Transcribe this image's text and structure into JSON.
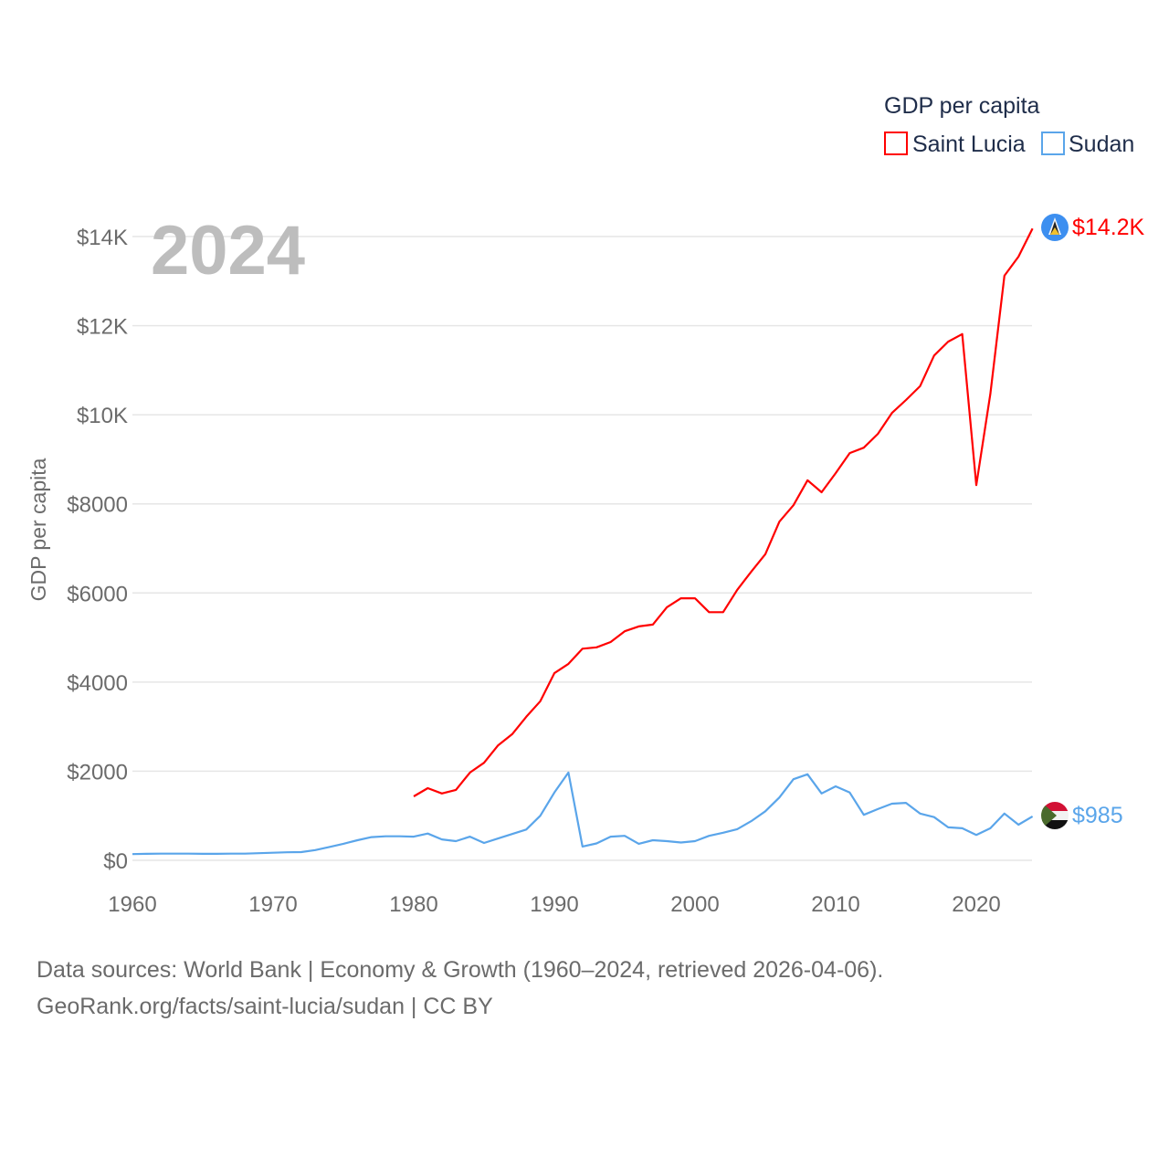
{
  "chart_data": {
    "type": "line",
    "title": "2024",
    "xlabel": "",
    "ylabel": "GDP per capita",
    "xlim": [
      1960,
      2024
    ],
    "ylim": [
      0,
      14500
    ],
    "grid": true,
    "x_ticks": [
      1960,
      1970,
      1980,
      1990,
      2000,
      2010,
      2020
    ],
    "x_tick_labels": [
      "1960",
      "1970",
      "1980",
      "1990",
      "2000",
      "2010",
      "2020"
    ],
    "y_ticks": [
      0,
      2000,
      4000,
      6000,
      8000,
      10000,
      12000,
      14000
    ],
    "y_tick_labels": [
      "$0",
      "$2000",
      "$4000",
      "$6000",
      "$8000",
      "$10K",
      "$12K",
      "$14K"
    ],
    "legend": {
      "title": "GDP per capita",
      "placement": "top-right"
    },
    "series": [
      {
        "name": "Saint Lucia",
        "color": "#ff0000",
        "end_label": "$14.2K",
        "x_start": 1980,
        "values": [
          1435,
          1620,
          1500,
          1580,
          1970,
          2190,
          2580,
          2830,
          3220,
          3570,
          4200,
          4410,
          4750,
          4780,
          4900,
          5140,
          5250,
          5290,
          5680,
          5880,
          5880,
          5570,
          5570,
          6070,
          6480,
          6870,
          7600,
          7970,
          8530,
          8260,
          8690,
          9140,
          9260,
          9570,
          10040,
          10330,
          10640,
          11330,
          11640,
          11810,
          8420,
          10470,
          13120,
          13550,
          14180
        ]
      },
      {
        "name": "Sudan",
        "color": "#5aa5ea",
        "end_label": "$985",
        "x_start": 1960,
        "values": [
          140,
          145,
          150,
          150,
          150,
          145,
          145,
          150,
          150,
          160,
          170,
          180,
          185,
          230,
          300,
          370,
          450,
          520,
          540,
          540,
          530,
          600,
          470,
          430,
          530,
          390,
          490,
          590,
          690,
          1000,
          1520,
          1970,
          310,
          380,
          530,
          550,
          370,
          450,
          430,
          400,
          430,
          550,
          620,
          700,
          880,
          1100,
          1410,
          1820,
          1930,
          1500,
          1660,
          1520,
          1020,
          1150,
          1270,
          1290,
          1050,
          970,
          740,
          720,
          570,
          720,
          1050,
          800,
          985
        ]
      }
    ]
  },
  "footer": {
    "line1": "Data sources: World Bank | Economy & Growth (1960–2024, retrieved 2026-04-06).",
    "line2": "GeoRank.org/facts/saint-lucia/sudan | CC BY"
  }
}
